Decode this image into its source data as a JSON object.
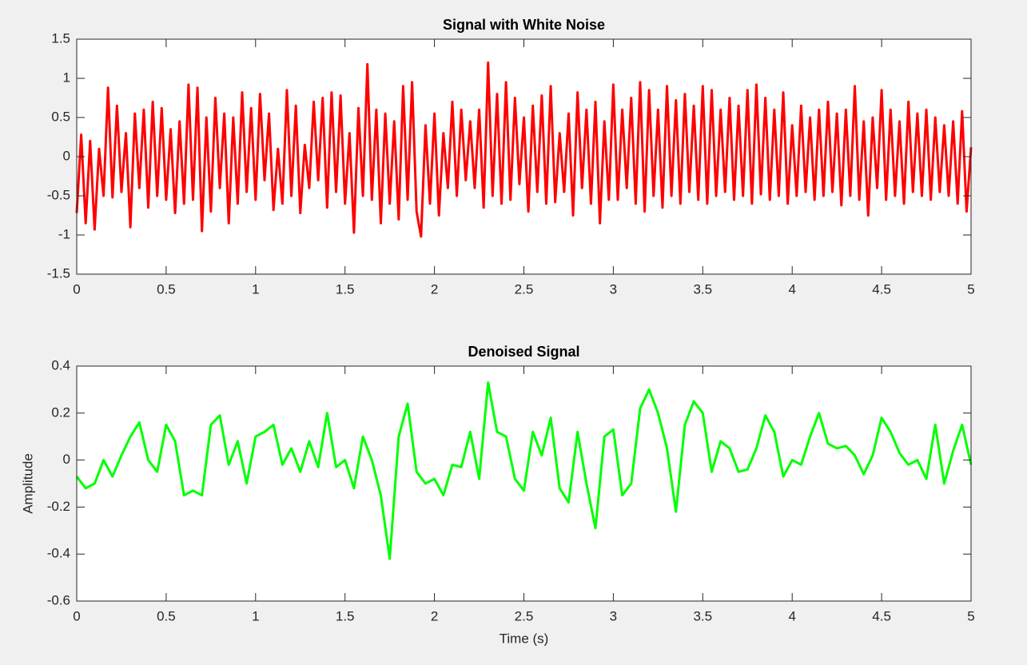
{
  "chart_data": [
    {
      "type": "line",
      "title": "Signal with White Noise",
      "color": "#ff0000",
      "xlim": [
        0,
        5
      ],
      "ylim": [
        -1.5,
        1.5
      ],
      "xticks": [
        0,
        0.5,
        1,
        1.5,
        2,
        2.5,
        3,
        3.5,
        4,
        4.5,
        5
      ],
      "yticks": [
        -1.5,
        -1,
        -0.5,
        0,
        0.5,
        1,
        1.5
      ],
      "x": [
        0,
        0.025,
        0.05,
        0.075,
        0.1,
        0.125,
        0.15,
        0.175,
        0.2,
        0.225,
        0.25,
        0.275,
        0.3,
        0.325,
        0.35,
        0.375,
        0.4,
        0.425,
        0.45,
        0.475,
        0.5,
        0.525,
        0.55,
        0.575,
        0.6,
        0.625,
        0.65,
        0.675,
        0.7,
        0.725,
        0.75,
        0.775,
        0.8,
        0.825,
        0.85,
        0.875,
        0.9,
        0.925,
        0.95,
        0.975,
        1,
        1.025,
        1.05,
        1.075,
        1.1,
        1.125,
        1.15,
        1.175,
        1.2,
        1.225,
        1.25,
        1.275,
        1.3,
        1.325,
        1.35,
        1.375,
        1.4,
        1.425,
        1.45,
        1.475,
        1.5,
        1.525,
        1.55,
        1.575,
        1.6,
        1.625,
        1.65,
        1.675,
        1.7,
        1.725,
        1.75,
        1.775,
        1.8,
        1.825,
        1.85,
        1.875,
        1.9,
        1.925,
        1.95,
        1.975,
        2,
        2.025,
        2.05,
        2.075,
        2.1,
        2.125,
        2.15,
        2.175,
        2.2,
        2.225,
        2.25,
        2.275,
        2.3,
        2.325,
        2.35,
        2.375,
        2.4,
        2.425,
        2.45,
        2.475,
        2.5,
        2.525,
        2.55,
        2.575,
        2.6,
        2.625,
        2.65,
        2.675,
        2.7,
        2.725,
        2.75,
        2.775,
        2.8,
        2.825,
        2.85,
        2.875,
        2.9,
        2.925,
        2.95,
        2.975,
        3,
        3.025,
        3.05,
        3.075,
        3.1,
        3.125,
        3.15,
        3.175,
        3.2,
        3.225,
        3.25,
        3.275,
        3.3,
        3.325,
        3.35,
        3.375,
        3.4,
        3.425,
        3.45,
        3.475,
        3.5,
        3.525,
        3.55,
        3.575,
        3.6,
        3.625,
        3.65,
        3.675,
        3.7,
        3.725,
        3.75,
        3.775,
        3.8,
        3.825,
        3.85,
        3.875,
        3.9,
        3.925,
        3.95,
        3.975,
        4,
        4.025,
        4.05,
        4.075,
        4.1,
        4.125,
        4.15,
        4.175,
        4.2,
        4.225,
        4.25,
        4.275,
        4.3,
        4.325,
        4.35,
        4.375,
        4.4,
        4.425,
        4.45,
        4.475,
        4.5,
        4.525,
        4.55,
        4.575,
        4.6,
        4.625,
        4.65,
        4.675,
        4.7,
        4.725,
        4.75,
        4.775,
        4.8,
        4.825,
        4.85,
        4.875,
        4.9,
        4.925,
        4.95,
        4.975,
        5
      ],
      "values": [
        -0.72,
        0.28,
        -0.85,
        0.2,
        -0.93,
        0.1,
        -0.5,
        0.88,
        -0.52,
        0.65,
        -0.45,
        0.3,
        -0.9,
        0.55,
        -0.4,
        0.6,
        -0.65,
        0.7,
        -0.5,
        0.62,
        -0.55,
        0.35,
        -0.72,
        0.45,
        -0.6,
        0.92,
        -0.55,
        0.88,
        -0.95,
        0.5,
        -0.7,
        0.75,
        -0.4,
        0.55,
        -0.85,
        0.5,
        -0.6,
        0.82,
        -0.45,
        0.62,
        -0.55,
        0.8,
        -0.3,
        0.55,
        -0.68,
        0.1,
        -0.6,
        0.85,
        -0.5,
        0.65,
        -0.72,
        0.15,
        -0.4,
        0.7,
        -0.3,
        0.75,
        -0.65,
        0.82,
        -0.45,
        0.78,
        -0.6,
        0.3,
        -0.97,
        0.62,
        -0.5,
        1.18,
        -0.55,
        0.6,
        -0.85,
        0.55,
        -0.6,
        0.45,
        -0.8,
        0.9,
        -0.55,
        0.95,
        -0.7,
        -1.02,
        0.4,
        -0.6,
        0.55,
        -0.75,
        0.3,
        -0.4,
        0.7,
        -0.5,
        0.6,
        -0.3,
        0.45,
        -0.4,
        0.6,
        -0.65,
        1.2,
        -0.5,
        0.8,
        -0.6,
        0.95,
        -0.55,
        0.75,
        -0.35,
        0.5,
        -0.7,
        0.65,
        -0.45,
        0.78,
        -0.6,
        0.9,
        -0.58,
        0.3,
        -0.45,
        0.55,
        -0.75,
        0.82,
        -0.4,
        0.6,
        -0.6,
        0.7,
        -0.85,
        0.45,
        -0.55,
        0.92,
        -0.55,
        0.6,
        -0.4,
        0.75,
        -0.6,
        0.95,
        -0.7,
        0.85,
        -0.5,
        0.6,
        -0.65,
        0.9,
        -0.5,
        0.72,
        -0.6,
        0.8,
        -0.45,
        0.65,
        -0.55,
        0.9,
        -0.6,
        0.85,
        -0.5,
        0.6,
        -0.45,
        0.75,
        -0.55,
        0.65,
        -0.5,
        0.85,
        -0.6,
        0.92,
        -0.48,
        0.75,
        -0.55,
        0.6,
        -0.5,
        0.82,
        -0.6,
        0.4,
        -0.5,
        0.65,
        -0.45,
        0.5,
        -0.55,
        0.6,
        -0.5,
        0.7,
        -0.45,
        0.55,
        -0.62,
        0.6,
        -0.5,
        0.9,
        -0.55,
        0.45,
        -0.75,
        0.5,
        -0.4,
        0.85,
        -0.55,
        0.6,
        -0.5,
        0.45,
        -0.6,
        0.7,
        -0.45,
        0.55,
        -0.5,
        0.6,
        -0.55,
        0.5,
        -0.45,
        0.4,
        -0.5,
        0.45,
        -0.6,
        0.58,
        -0.7,
        0.12
      ]
    },
    {
      "type": "line",
      "title": "Denoised Signal",
      "xlabel": "Time (s)",
      "ylabel": "Amplitude",
      "color": "#00ff00",
      "xlim": [
        0,
        5
      ],
      "ylim": [
        -0.6,
        0.4
      ],
      "xticks": [
        0,
        0.5,
        1,
        1.5,
        2,
        2.5,
        3,
        3.5,
        4,
        4.5,
        5
      ],
      "yticks": [
        -0.6,
        -0.4,
        -0.2,
        0,
        0.2,
        0.4
      ],
      "x": [
        0,
        0.05,
        0.1,
        0.15,
        0.2,
        0.25,
        0.3,
        0.35,
        0.4,
        0.45,
        0.5,
        0.55,
        0.6,
        0.65,
        0.7,
        0.75,
        0.8,
        0.85,
        0.9,
        0.95,
        1,
        1.05,
        1.1,
        1.15,
        1.2,
        1.25,
        1.3,
        1.35,
        1.4,
        1.45,
        1.5,
        1.55,
        1.6,
        1.65,
        1.7,
        1.75,
        1.8,
        1.85,
        1.9,
        1.95,
        2,
        2.05,
        2.1,
        2.15,
        2.2,
        2.25,
        2.3,
        2.35,
        2.4,
        2.45,
        2.5,
        2.55,
        2.6,
        2.65,
        2.7,
        2.75,
        2.8,
        2.85,
        2.9,
        2.95,
        3,
        3.05,
        3.1,
        3.15,
        3.2,
        3.25,
        3.3,
        3.35,
        3.4,
        3.45,
        3.5,
        3.55,
        3.6,
        3.65,
        3.7,
        3.75,
        3.8,
        3.85,
        3.9,
        3.95,
        4,
        4.05,
        4.1,
        4.15,
        4.2,
        4.25,
        4.3,
        4.35,
        4.4,
        4.45,
        4.5,
        4.55,
        4.6,
        4.65,
        4.7,
        4.75,
        4.8,
        4.85,
        4.9,
        4.95,
        5
      ],
      "values": [
        -0.07,
        -0.12,
        -0.1,
        0,
        -0.07,
        0.02,
        0.1,
        0.16,
        0,
        -0.05,
        0.15,
        0.08,
        -0.15,
        -0.13,
        -0.15,
        0.15,
        0.19,
        -0.02,
        0.08,
        -0.1,
        0.1,
        0.12,
        0.15,
        -0.02,
        0.05,
        -0.05,
        0.08,
        -0.03,
        0.2,
        -0.03,
        0,
        -0.12,
        0.1,
        0,
        -0.15,
        -0.42,
        0.1,
        0.24,
        -0.05,
        -0.1,
        -0.08,
        -0.15,
        -0.02,
        -0.03,
        0.12,
        -0.08,
        0.33,
        0.12,
        0.1,
        -0.08,
        -0.13,
        0.12,
        0.02,
        0.18,
        -0.12,
        -0.18,
        0.12,
        -0.1,
        -0.29,
        0.1,
        0.13,
        -0.15,
        -0.1,
        0.22,
        0.3,
        0.2,
        0.05,
        -0.22,
        0.15,
        0.25,
        0.2,
        -0.05,
        0.08,
        0.05,
        -0.05,
        -0.04,
        0.05,
        0.19,
        0.12,
        -0.07,
        0,
        -0.02,
        0.1,
        0.2,
        0.07,
        0.05,
        0.06,
        0.02,
        -0.06,
        0.02,
        0.18,
        0.12,
        0.03,
        -0.02,
        0,
        -0.08,
        0.15,
        -0.1,
        0.04,
        0.15,
        -0.02
      ]
    }
  ]
}
